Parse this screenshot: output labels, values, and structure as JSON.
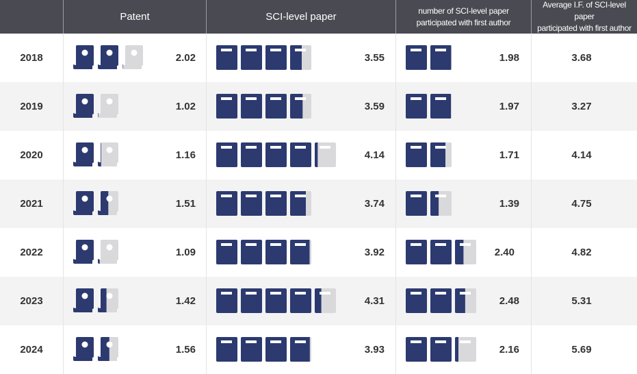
{
  "header": {
    "col_year": "",
    "col_patent": "Patent",
    "col_sci": "SCI-level paper",
    "col_first_line1": "number of SCI-level paper",
    "col_first_line2": "participated with first author",
    "col_if_line1": "Average I.F. of SCI-level paper",
    "col_if_line2": "participated with first author"
  },
  "colors": {
    "filled": "#2c3a70",
    "empty": "#d9d9db",
    "header_bg": "#4a4a52",
    "alt_row": "#f3f3f3"
  },
  "icons": {
    "patent": "certificate-scroll-icon",
    "paper": "book-icon"
  },
  "chart_data": {
    "type": "table",
    "columns": [
      "Patent",
      "SCI-level paper",
      "number of SCI-level paper participated with first author",
      "Average I.F. of SCI-level paper participated with first author"
    ],
    "rows": [
      {
        "year": "2018",
        "patent": "2.02",
        "sci": "3.55",
        "first": "1.98",
        "if": "3.68"
      },
      {
        "year": "2019",
        "patent": "1.02",
        "sci": "3.59",
        "first": "1.97",
        "if": "3.27"
      },
      {
        "year": "2020",
        "patent": "1.16",
        "sci": "4.14",
        "first": "1.71",
        "if": "4.14"
      },
      {
        "year": "2021",
        "patent": "1.51",
        "sci": "3.74",
        "first": "1.39",
        "if": "4.75"
      },
      {
        "year": "2022",
        "patent": "1.09",
        "sci": "3.92",
        "first": "2.40",
        "if": "4.82"
      },
      {
        "year": "2023",
        "patent": "1.42",
        "sci": "4.31",
        "first": "2.48",
        "if": "5.31"
      },
      {
        "year": "2024",
        "patent": "1.56",
        "sci": "3.93",
        "first": "2.16",
        "if": "5.69"
      }
    ]
  }
}
